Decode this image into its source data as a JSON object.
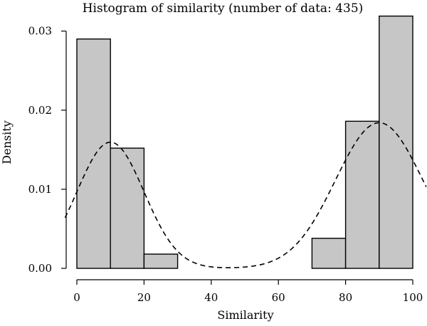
{
  "chart_data": {
    "type": "bar",
    "title": "Histogram of similarity (number of data: 435)",
    "xlabel": "Similarity",
    "ylabel": "Density",
    "xlim": [
      0,
      100
    ],
    "ylim": [
      0,
      0.032
    ],
    "x_ticks": [
      0,
      20,
      40,
      60,
      80,
      100
    ],
    "x_tick_labels": [
      "0",
      "20",
      "40",
      "60",
      "80",
      "100"
    ],
    "y_ticks": [
      0.0,
      0.01,
      0.02,
      0.03
    ],
    "y_tick_labels": [
      "0.00",
      "0.01",
      "0.02",
      "0.03"
    ],
    "bins": [
      {
        "start": 0,
        "end": 10,
        "density": 0.029
      },
      {
        "start": 10,
        "end": 20,
        "density": 0.0152
      },
      {
        "start": 20,
        "end": 30,
        "density": 0.0018
      },
      {
        "start": 30,
        "end": 40,
        "density": 0
      },
      {
        "start": 40,
        "end": 50,
        "density": 0
      },
      {
        "start": 50,
        "end": 60,
        "density": 0
      },
      {
        "start": 60,
        "end": 70,
        "density": 0
      },
      {
        "start": 70,
        "end": 80,
        "density": 0.0038
      },
      {
        "start": 80,
        "end": 90,
        "density": 0.0186
      },
      {
        "start": 90,
        "end": 100,
        "density": 0.0319
      }
    ],
    "density_curve": {
      "style": "dashed",
      "components": [
        {
          "weight": 0.4,
          "mean": 10,
          "sd": 10
        },
        {
          "weight": 0.6,
          "mean": 90,
          "sd": 13
        }
      ]
    },
    "grid": false,
    "legend": "none"
  }
}
